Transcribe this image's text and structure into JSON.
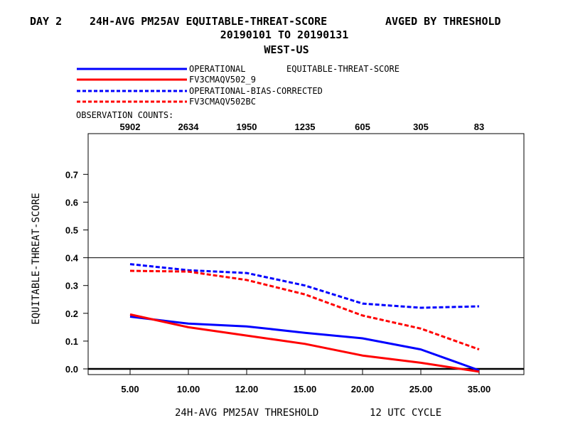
{
  "header": {
    "line1_left": "DAY 2",
    "line1_mid": "24H-AVG PM25AV EQUITABLE-THREAT-SCORE",
    "line1_right": "AVGED BY THRESHOLD",
    "line2": "20190101 TO 20190131",
    "line3": "WEST-US"
  },
  "legend": {
    "metric_label": "EQUITABLE-THREAT-SCORE",
    "observation_counts_label": "OBSERVATION COUNTS:"
  },
  "colors": {
    "blue": "#0000ff",
    "red": "#ff0000",
    "axis": "#000000"
  },
  "chart_data": {
    "type": "line",
    "title": "24H-AVG PM25AV EQUITABLE-THREAT-SCORE",
    "xlabel": "24H-AVG PM25AV THRESHOLD",
    "xlabel_suffix": "12 UTC CYCLE",
    "ylabel": "EQUITABLE-THREAT-SCORE",
    "categories": [
      "5.00",
      "10.00",
      "12.00",
      "15.00",
      "20.00",
      "25.00",
      "35.00"
    ],
    "observation_counts": [
      "5902",
      "2634",
      "1950",
      "1235",
      "605",
      "305",
      "83"
    ],
    "yticks": [
      "0.0",
      "0.1",
      "0.2",
      "0.3",
      "0.4",
      "0.5",
      "0.6",
      "0.7"
    ],
    "ylim": [
      -0.01,
      0.85
    ],
    "reference_line": 0.4,
    "series": [
      {
        "name": "OPERATIONAL",
        "color": "#0000ff",
        "dash": "solid",
        "values": [
          0.188,
          0.163,
          0.153,
          0.13,
          0.11,
          0.07,
          -0.005
        ]
      },
      {
        "name": "FV3CMAQV502_9",
        "color": "#ff0000",
        "dash": "solid",
        "values": [
          0.196,
          0.15,
          0.12,
          0.09,
          0.048,
          0.022,
          -0.01
        ]
      },
      {
        "name": "OPERATIONAL-BIAS-CORRECTED",
        "color": "#0000ff",
        "dash": "dashed",
        "values": [
          0.377,
          0.355,
          0.345,
          0.3,
          0.235,
          0.22,
          0.225
        ]
      },
      {
        "name": "FV3CMAQV502BC",
        "color": "#ff0000",
        "dash": "dashed",
        "values": [
          0.353,
          0.35,
          0.32,
          0.268,
          0.192,
          0.145,
          0.07
        ]
      }
    ]
  }
}
